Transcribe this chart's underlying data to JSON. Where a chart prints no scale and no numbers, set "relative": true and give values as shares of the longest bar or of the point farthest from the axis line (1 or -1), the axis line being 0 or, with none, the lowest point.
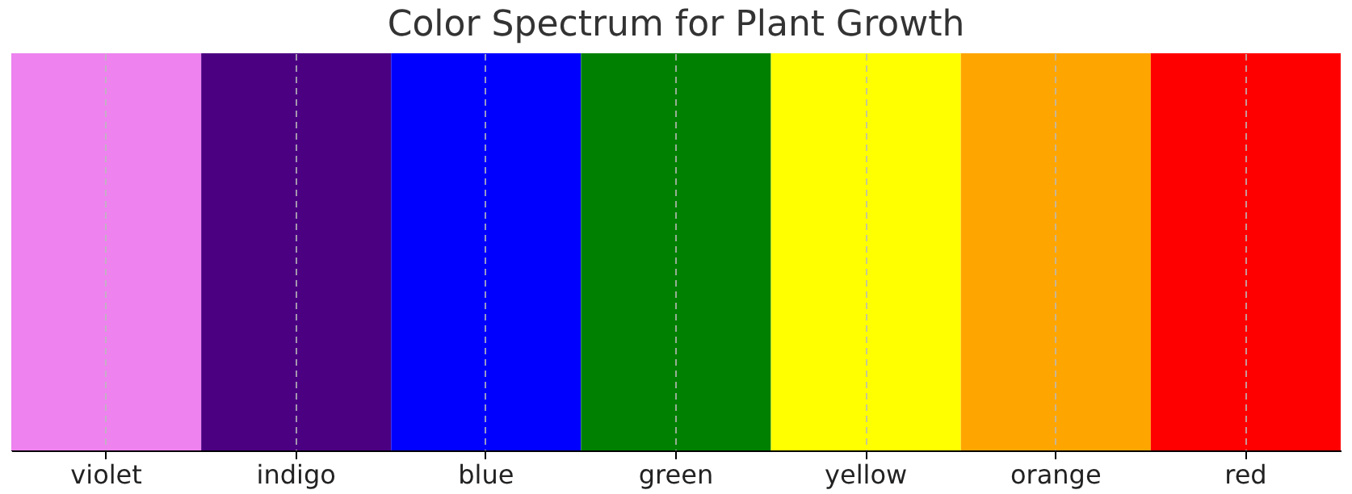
{
  "chart_data": {
    "type": "bar",
    "title": "Color Spectrum for Plant Growth",
    "categories": [
      "violet",
      "indigo",
      "blue",
      "green",
      "yellow",
      "orange",
      "red"
    ],
    "values": [
      1,
      1,
      1,
      1,
      1,
      1,
      1
    ],
    "colors": [
      "#ee82ee",
      "#4b0082",
      "#0000ff",
      "#008000",
      "#ffff00",
      "#ffa500",
      "#ff0000"
    ],
    "relative": true,
    "grid": "x"
  }
}
